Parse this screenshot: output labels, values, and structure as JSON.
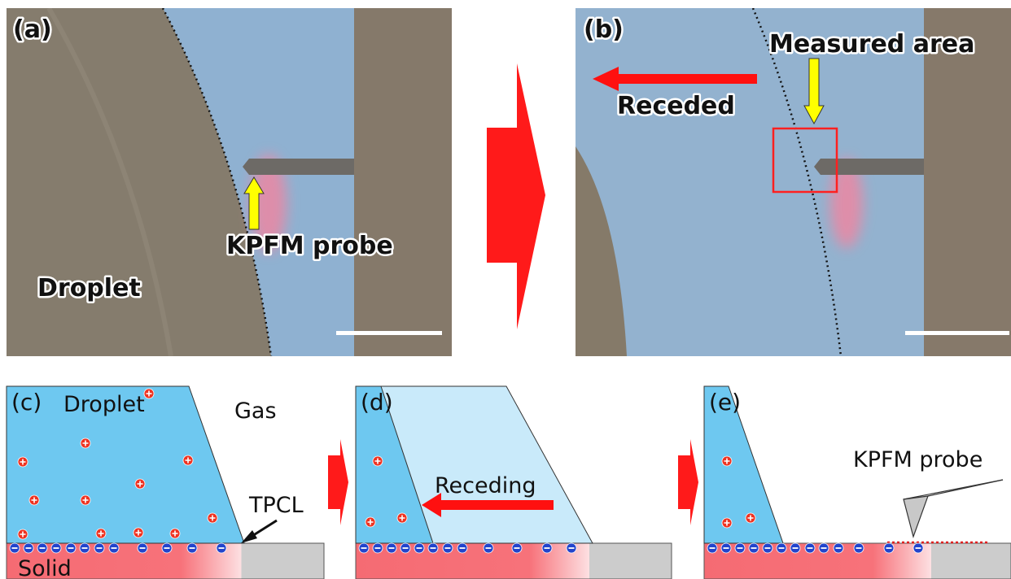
{
  "panels": [
    {
      "label": "(a)",
      "texts": [
        "Droplet",
        "KPFM probe"
      ]
    },
    {
      "label": "(b)",
      "texts": [
        "Measured area",
        "Receded"
      ]
    },
    {
      "label": "(c)",
      "texts": [
        "Droplet",
        "Gas",
        "TPCL",
        "Solid"
      ]
    },
    {
      "label": "(d)",
      "texts": [
        "Receding"
      ]
    },
    {
      "label": "(e)",
      "texts": [
        "KPFM probe"
      ]
    }
  ]
}
